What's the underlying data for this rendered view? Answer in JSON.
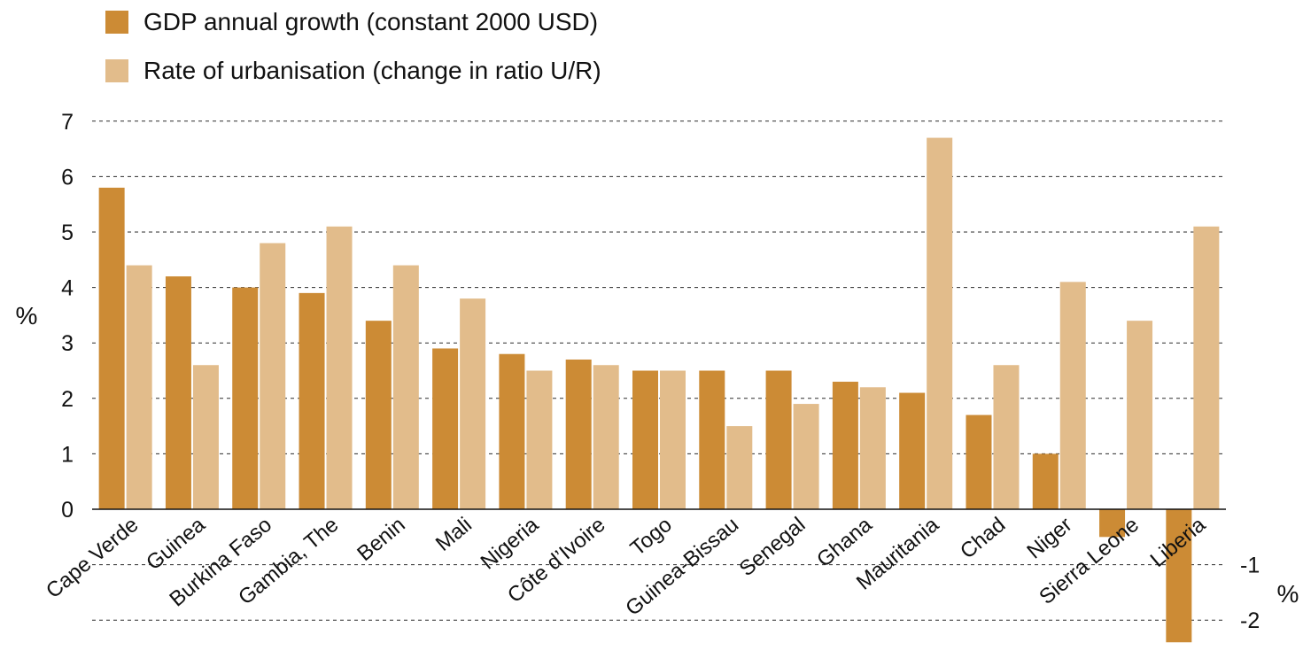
{
  "chart_data": {
    "type": "bar",
    "title": "",
    "xlabel": "",
    "ylabel": "%",
    "right_ylabel": "%",
    "ylim": [
      -2,
      7
    ],
    "left_ticks": [
      "0",
      "1",
      "2",
      "3",
      "4",
      "5",
      "6",
      "7"
    ],
    "right_ticks": [
      "-1",
      "-2"
    ],
    "grid": true,
    "legend_position": "top-left",
    "categories": [
      "Cape Verde",
      "Guinea",
      "Burkina Faso",
      "Gambia, The",
      "Benin",
      "Mali",
      "Nigeria",
      "Côte d’Ivoire",
      "Togo",
      "Guinea-Bissau",
      "Senegal",
      "Ghana",
      "Mauritania",
      "Chad",
      "Niger",
      "Sierra Leone",
      "Liberia"
    ],
    "series": [
      {
        "name": "GDP annual growth (constant 2000 USD)",
        "color": "#CC8B35",
        "values": [
          5.8,
          4.2,
          4.0,
          3.9,
          3.4,
          2.9,
          2.8,
          2.7,
          2.5,
          2.5,
          2.5,
          2.3,
          2.1,
          1.7,
          1.0,
          -0.5,
          -2.4
        ]
      },
      {
        "name": "Rate of urbanisation (change in ratio U/R)",
        "color": "#E2BC8B",
        "values": [
          4.4,
          2.6,
          4.8,
          5.1,
          4.4,
          3.8,
          2.5,
          2.6,
          2.5,
          1.5,
          1.9,
          2.2,
          6.7,
          2.6,
          4.1,
          3.4,
          5.1
        ]
      }
    ]
  }
}
